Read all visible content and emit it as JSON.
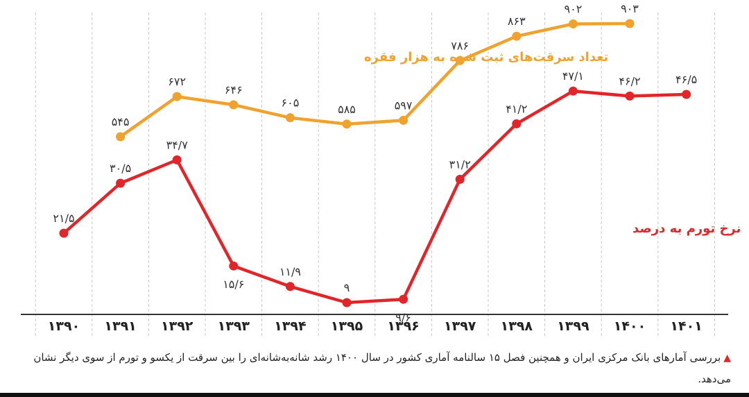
{
  "chart_data": {
    "type": "line",
    "categories": [
      "۱۳۹۰",
      "۱۳۹۱",
      "۱۳۹۲",
      "۱۳۹۳",
      "۱۳۹۴",
      "۱۳۹۵",
      "۱۳۹۶",
      "۱۳۹۷",
      "۱۳۹۸",
      "۱۳۹۹",
      "۱۴۰۰",
      "۱۴۰۱"
    ],
    "series": [
      {
        "name": "تعداد سرقت‌های ثبت شده به هزار فقره",
        "color": "#f0a22e",
        "values": [
          null,
          545,
          672,
          646,
          605,
          585,
          597,
          786,
          863,
          902,
          903,
          null
        ],
        "labels": [
          "",
          "۵۴۵",
          "۶۷۲",
          "۶۴۶",
          "۶۰۵",
          "۵۸۵",
          "۵۹۷",
          "۷۸۶",
          "۸۶۳",
          "۹۰۲",
          "۹۰۳",
          ""
        ]
      },
      {
        "name": "نرخ تورم به درصد",
        "color": "#e0262a",
        "values": [
          21.5,
          30.5,
          34.7,
          15.6,
          11.9,
          9,
          9.6,
          31.2,
          41.2,
          47.1,
          46.2,
          46.5
        ],
        "labels": [
          "۲۱/۵",
          "۳۰/۵",
          "۳۴/۷",
          "۱۵/۶",
          "۱۱/۹",
          "۹",
          "۹/۶",
          "۳۱/۲",
          "۴۱/۲",
          "۴۷/۱",
          "۴۶/۲",
          "۴۶/۵"
        ]
      }
    ],
    "grid": "vertical-dashed",
    "legend": "inline-labels"
  },
  "caption": {
    "marker": "▲",
    "text": "بررسی آمارهای بانک مرکزی ایران و همچنین فصل ۱۵ سالنامه آماری کشور در سال ۱۴۰۰ رشد شانه‌به‌شانه‌ای را بین سرقت از یکسو و تورم از سوی دیگر  نشان می‌دهد."
  }
}
